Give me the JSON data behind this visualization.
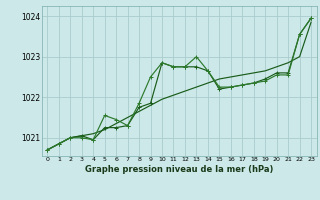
{
  "title": "Graphe pression niveau de la mer (hPa)",
  "background_color": "#cce8e8",
  "grid_color": "#aacccc",
  "line_color_dark": "#1a5c1a",
  "line_color_medium": "#2d7a2d",
  "xlim": [
    -0.5,
    23.5
  ],
  "ylim": [
    1020.55,
    1024.25
  ],
  "yticks": [
    1021,
    1022,
    1023,
    1024
  ],
  "xticks": [
    0,
    1,
    2,
    3,
    4,
    5,
    6,
    7,
    8,
    9,
    10,
    11,
    12,
    13,
    14,
    15,
    16,
    17,
    18,
    19,
    20,
    21,
    22,
    23
  ],
  "series1_x": [
    0,
    1,
    2,
    3,
    4,
    5,
    6,
    7,
    8,
    9,
    10,
    11,
    12,
    13,
    14,
    15,
    16,
    17,
    18,
    19,
    20,
    21,
    22,
    23
  ],
  "series1_y": [
    1020.7,
    1020.85,
    1021.0,
    1021.05,
    1021.1,
    1021.2,
    1021.35,
    1021.5,
    1021.65,
    1021.8,
    1021.95,
    1022.05,
    1022.15,
    1022.25,
    1022.35,
    1022.45,
    1022.5,
    1022.55,
    1022.6,
    1022.65,
    1022.75,
    1022.85,
    1023.0,
    1023.85
  ],
  "series2_x": [
    0,
    1,
    2,
    3,
    4,
    5,
    6,
    7,
    8,
    9,
    10,
    11,
    12,
    13,
    14,
    15,
    16,
    17,
    18,
    19,
    20,
    21,
    22,
    23
  ],
  "series2_y": [
    1020.7,
    1020.85,
    1021.0,
    1021.05,
    1020.95,
    1021.25,
    1021.25,
    1021.3,
    1021.75,
    1021.85,
    1022.85,
    1022.75,
    1022.75,
    1022.75,
    1022.65,
    1022.2,
    1022.25,
    1022.3,
    1022.35,
    1022.45,
    1022.6,
    1022.6,
    1023.55,
    1023.95
  ],
  "series3_x": [
    0,
    1,
    2,
    3,
    4,
    5,
    6,
    7,
    8,
    9,
    10,
    11,
    12,
    13,
    14,
    15,
    16,
    17,
    18,
    19,
    20,
    21,
    22,
    23
  ],
  "series3_y": [
    1020.7,
    1020.85,
    1021.0,
    1021.0,
    1020.95,
    1021.55,
    1021.45,
    1021.3,
    1021.85,
    1022.5,
    1022.85,
    1022.75,
    1022.75,
    1023.0,
    1022.65,
    1022.25,
    1022.25,
    1022.3,
    1022.35,
    1022.4,
    1022.55,
    1022.55,
    1023.55,
    1023.95
  ]
}
